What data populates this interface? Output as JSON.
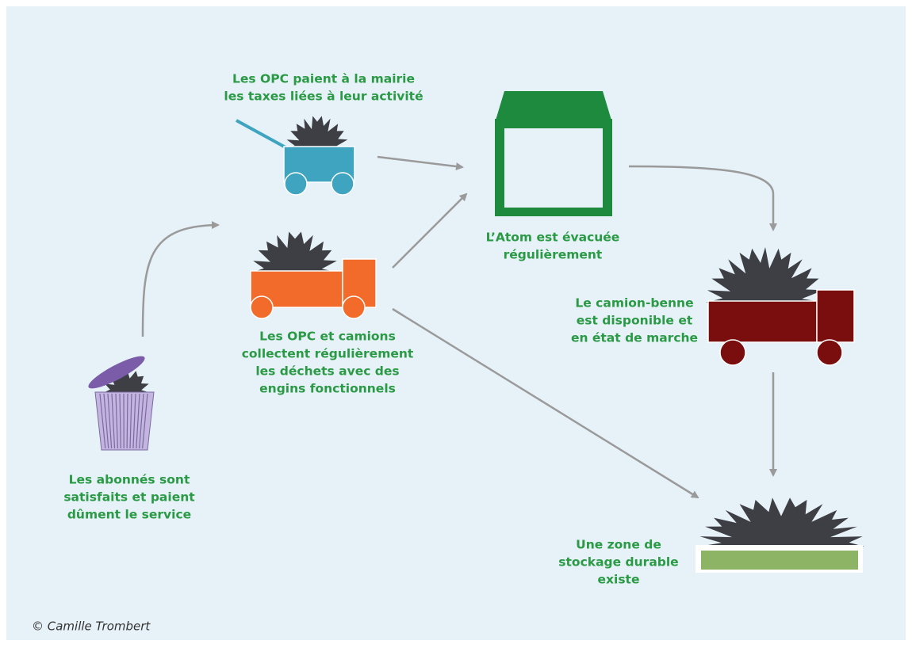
{
  "nodes": [
    {
      "lines": [
        "Les OPC paient à la mairie",
        "les taxes liées à leur activité"
      ]
    },
    {
      "lines": [
        "L’Atom est évacuée",
        "régulièrement"
      ]
    },
    {
      "lines": [
        "Le camion-benne",
        "est disponible et",
        "en état de marche"
      ]
    },
    {
      "lines": [
        "Les OPC et camions",
        "collectent régulièrement",
        "les déchets avec des",
        "engins fonctionnels"
      ]
    },
    {
      "lines": [
        "Les abonnés sont",
        "satisfaits et paient",
        "dûment le service"
      ]
    },
    {
      "lines": [
        "Une zone de",
        "stockage durable",
        "existe"
      ]
    }
  ],
  "credit": "© Camille Trombert"
}
